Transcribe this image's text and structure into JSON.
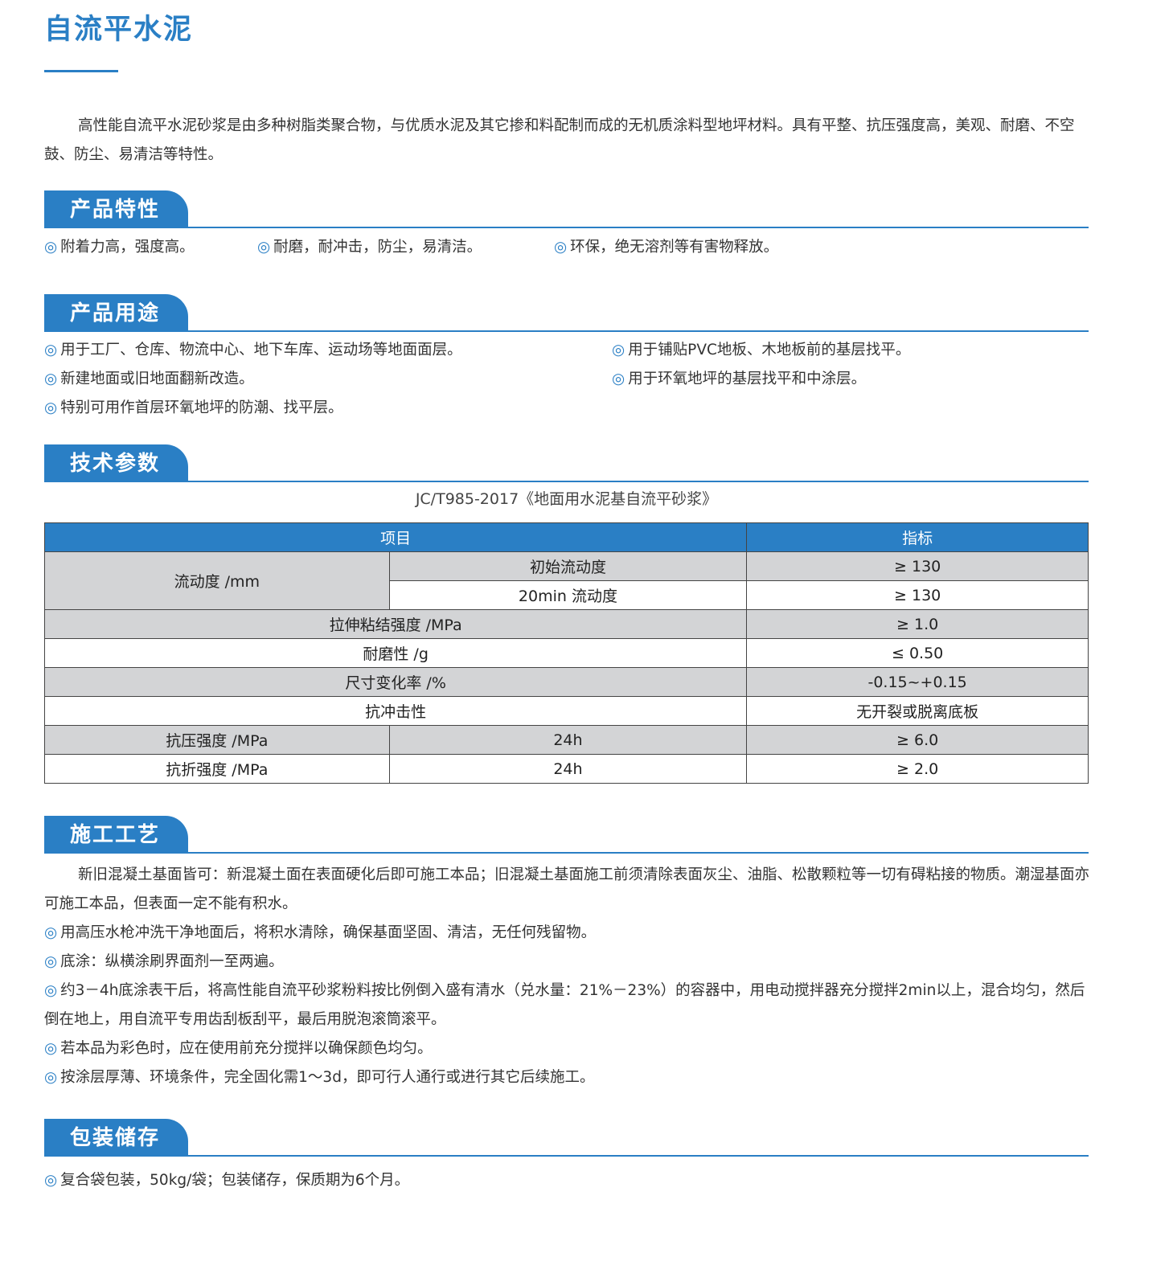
{
  "title": "自流平水泥",
  "intro": "高性能自流平水泥砂浆是由多种树脂类聚合物，与优质水泥及其它掺和料配制而成的无机质涂料型地坪材料。具有平整、抗压强度高，美观、耐磨、不空鼓、防尘、易清洁等特性。",
  "bullet_icon": "double-circle-icon",
  "bullet_glyph": "◎",
  "accent_color": "#2a7fc5",
  "features": {
    "heading": "产品特性",
    "items": [
      "附着力高，强度高。",
      "耐磨，耐冲击，防尘，易清洁。",
      "环保，绝无溶剂等有害物释放。"
    ]
  },
  "uses": {
    "heading": "产品用途",
    "items": [
      "用于工厂、仓库、物流中心、地下车库、运动场等地面面层。",
      "用于铺贴PVC地板、木地板前的基层找平。",
      "新建地面或旧地面翻新改造。",
      "用于环氧地坪的基层找平和中涂层。",
      "特别可用作首层环氧地坪的防潮、找平层。"
    ]
  },
  "tech": {
    "heading": "技术参数",
    "standard": "JC/T985-2017《地面用水泥基自流平砂浆》",
    "header": [
      "项目",
      "指标"
    ],
    "rows": {
      "flow_label": "流动度 /mm",
      "flow_initial": "初始流动度",
      "flow_initial_value": "≥ 130",
      "flow_20": "20min 流动度",
      "flow_20_value": "≥ 130",
      "tensile": "拉伸粘结强度 /MPa",
      "tensile_value": "≥ 1.0",
      "wear": "耐磨性 /g",
      "wear_value": "≤ 0.50",
      "dim": "尺寸变化率 /%",
      "dim_value": "-0.15~+0.15",
      "impact": "抗冲击性",
      "impact_value": "无开裂或脱离底板",
      "comp": "抗压强度 /MPa",
      "comp_time": "24h",
      "comp_value": "≥ 6.0",
      "flex": "抗折强度 /MPa",
      "flex_time": "24h",
      "flex_value": "≥ 2.0"
    }
  },
  "construction": {
    "heading": "施工工艺",
    "intro": "新旧混凝土基面皆可：新混凝土面在表面硬化后即可施工本品；旧混凝土基面施工前须清除表面灰尘、油脂、松散颗粒等一切有碍粘接的物质。潮湿基面亦可施工本品，但表面一定不能有积水。",
    "items": [
      "用高压水枪冲洗干净地面后，将积水清除，确保基面坚固、清洁，无任何残留物。",
      "底涂：纵横涂刷界面剂一至两遍。",
      "约3－4h底涂表干后，将高性能自流平砂浆粉料按比例倒入盛有清水（兑水量：21%－23%）的容器中，用电动搅拌器充分搅拌2min以上，混合均匀，然后倒在地上，用自流平专用齿刮板刮平，最后用脱泡滚筒滚平。",
      "若本品为彩色时，应在使用前充分搅拌以确保颜色均匀。",
      "按涂层厚薄、环境条件，完全固化需1～3d，即可行人通行或进行其它后续施工。"
    ]
  },
  "storage": {
    "heading": "包装储存",
    "items": [
      "复合袋包装，50kg/袋；包装储存，保质期为6个月。"
    ]
  }
}
